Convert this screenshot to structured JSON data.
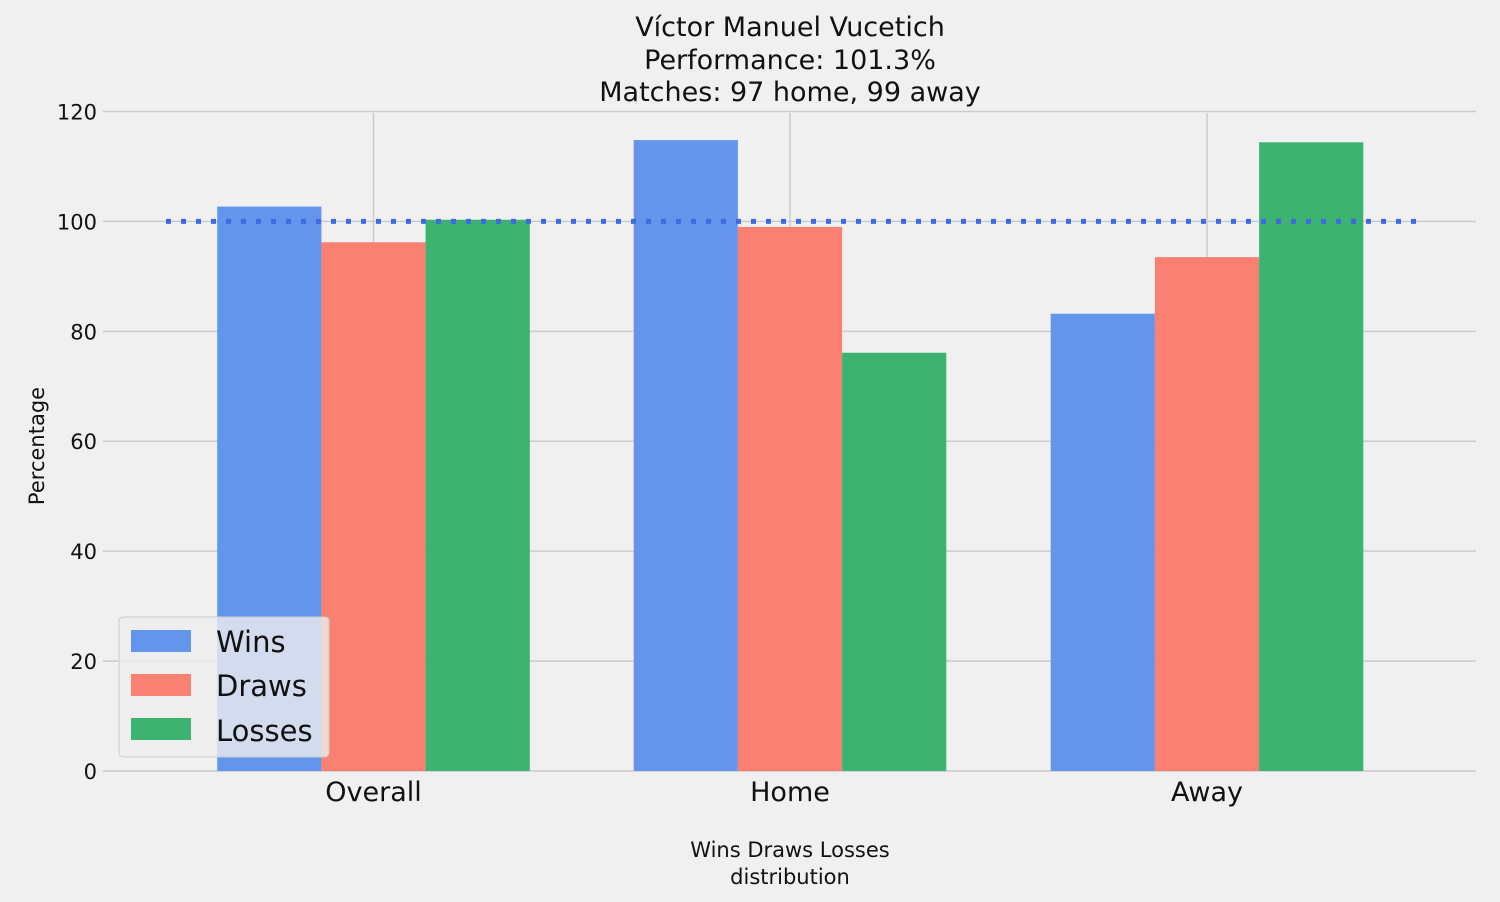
{
  "chart_data": {
    "type": "bar",
    "title_lines": [
      "Víctor Manuel Vucetich",
      "Performance: 101.3%",
      "Matches: 97 home, 99 away"
    ],
    "categories": [
      "Overall",
      "Home",
      "Away"
    ],
    "series": [
      {
        "name": "Wins",
        "color": "#6495ED",
        "values": [
          102.7,
          114.8,
          83.2
        ]
      },
      {
        "name": "Draws",
        "color": "#FA8072",
        "values": [
          96.2,
          99.0,
          93.5
        ]
      },
      {
        "name": "Losses",
        "color": "#3CB371",
        "values": [
          100.3,
          76.1,
          114.4
        ]
      }
    ],
    "reference_line": {
      "value": 100,
      "color": "#4169E1",
      "style": "dotted"
    },
    "xlabel_lines": [
      "Wins Draws Losses",
      "distribution"
    ],
    "ylabel": "Percentage",
    "ylim": [
      0,
      120
    ],
    "yticks": [
      0,
      20,
      40,
      60,
      80,
      100,
      120
    ],
    "grid": true,
    "legend_position": "lower-left"
  }
}
